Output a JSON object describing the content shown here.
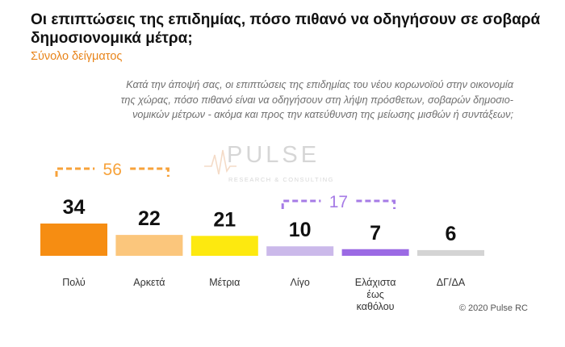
{
  "header": {
    "title": "Οι επιπτώσεις της επιδημίας, πόσο πιθανό να οδηγήσουν σε σοβαρά δημοσιονομικά μέτρα;",
    "subtitle": "Σύνολο δείγματος"
  },
  "question_lines": [
    "Κατά την άποψή σας, οι επιπτώσεις της επιδημίας του νέου κορωνοϊού στην οικονομία",
    "της χώρας, πόσο πιθανό είναι να οδηγήσουν στη λήψη πρόσθετων, σοβαρών δημοσιο-",
    "νομικών μέτρων - ακόμα και προς την κατεύθυνση της μείωσης μισθών ή συντάξεων;"
  ],
  "watermark": {
    "word": "PULSE",
    "tagline": "RESEARCH & CONSULTING"
  },
  "credit": "© 2020 Pulse RC",
  "chart_data": {
    "type": "bar",
    "categories": [
      "Πολύ",
      "Αρκετά",
      "Μέτρια",
      "Λίγο",
      "Ελάχιστα έως καθόλου",
      "ΔΓ/ΔΑ"
    ],
    "category_lines": [
      [
        "Πολύ"
      ],
      [
        "Αρκετά"
      ],
      [
        "Μέτρια"
      ],
      [
        "Λίγο"
      ],
      [
        "Ελάχιστα",
        "έως",
        "καθόλου"
      ],
      [
        "ΔΓ/ΔΑ"
      ]
    ],
    "values": [
      34,
      22,
      21,
      10,
      7,
      6
    ],
    "colors": [
      "#f68d12",
      "#fbc67c",
      "#fde90f",
      "#cbb9ea",
      "#9b6ae4",
      "#d4d4d4"
    ],
    "groups": [
      {
        "label": "56",
        "from": 0,
        "to": 1,
        "color": "#f7a23a"
      },
      {
        "label": "17",
        "from": 3,
        "to": 4,
        "color": "#a67be6"
      }
    ],
    "ylim": [
      0,
      34
    ],
    "grid": false,
    "legend": "none"
  }
}
